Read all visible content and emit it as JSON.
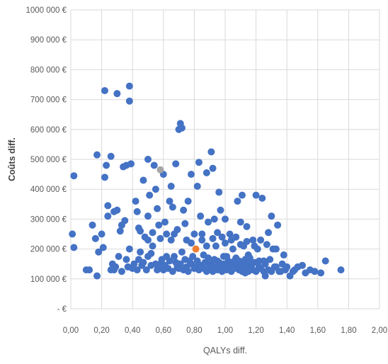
{
  "chart_data": {
    "type": "scatter",
    "xlabel": "QALYs diff.",
    "ylabel": "Coûts diff.",
    "xlim": [
      0,
      2
    ],
    "ylim": [
      0,
      1000000
    ],
    "grid": true,
    "x_ticks": [
      0,
      0.2,
      0.4,
      0.6,
      0.8,
      1.0,
      1.2,
      1.4,
      1.6,
      1.8,
      2.0
    ],
    "x_tick_labels": [
      "0,00",
      "0,20",
      "0,40",
      "0,60",
      "0,80",
      "1,00",
      "1,20",
      "1,40",
      "1,60",
      "1,80",
      "2,00"
    ],
    "y_ticks": [
      0,
      100000,
      200000,
      300000,
      400000,
      500000,
      600000,
      700000,
      800000,
      900000,
      1000000
    ],
    "y_tick_labels": [
      "-   €",
      "100 000 €",
      "200 000 €",
      "300 000 €",
      "400 000 €",
      "500 000 €",
      "600 000 €",
      "700 000 €",
      "800 000 €",
      "900 000 €",
      "1000 000 €"
    ],
    "colors": {
      "series": "#4472c4",
      "highlight_gray": "#a5a5a5",
      "highlight_orange": "#ed7d31"
    },
    "series": [
      {
        "color": "#4472c4",
        "points": [
          [
            0.02,
            445000
          ],
          [
            0.01,
            250000
          ],
          [
            0.02,
            205000
          ],
          [
            0.1,
            130000
          ],
          [
            0.14,
            280000
          ],
          [
            0.16,
            235000
          ],
          [
            0.17,
            515000
          ],
          [
            0.17,
            110000
          ],
          [
            0.22,
            730000
          ],
          [
            0.3,
            720000
          ],
          [
            0.38,
            745000
          ],
          [
            0.38,
            695000
          ],
          [
            0.2,
            250000
          ],
          [
            0.21,
            205000
          ],
          [
            0.22,
            440000
          ],
          [
            0.23,
            480000
          ],
          [
            0.24,
            345000
          ],
          [
            0.24,
            310000
          ],
          [
            0.26,
            510000
          ],
          [
            0.27,
            150000
          ],
          [
            0.28,
            130000
          ],
          [
            0.28,
            325000
          ],
          [
            0.3,
            330000
          ],
          [
            0.32,
            260000
          ],
          [
            0.33,
            280000
          ],
          [
            0.34,
            475000
          ],
          [
            0.35,
            295000
          ],
          [
            0.36,
            480000
          ],
          [
            0.38,
            200000
          ],
          [
            0.39,
            485000
          ],
          [
            0.4,
            135000
          ],
          [
            0.42,
            360000
          ],
          [
            0.43,
            325000
          ],
          [
            0.44,
            270000
          ],
          [
            0.45,
            190000
          ],
          [
            0.46,
            145000
          ],
          [
            0.47,
            430000
          ],
          [
            0.48,
            240000
          ],
          [
            0.5,
            500000
          ],
          [
            0.5,
            310000
          ],
          [
            0.51,
            380000
          ],
          [
            0.52,
            145000
          ],
          [
            0.53,
            210000
          ],
          [
            0.54,
            480000
          ],
          [
            0.55,
            400000
          ],
          [
            0.56,
            335000
          ],
          [
            0.57,
            135000
          ],
          [
            0.58,
            235000
          ],
          [
            0.59,
            165000
          ],
          [
            0.6,
            450000
          ],
          [
            0.61,
            290000
          ],
          [
            0.62,
            175000
          ],
          [
            0.64,
            360000
          ],
          [
            0.65,
            410000
          ],
          [
            0.66,
            340000
          ],
          [
            0.67,
            250000
          ],
          [
            0.68,
            485000
          ],
          [
            0.69,
            140000
          ],
          [
            0.7,
            600000
          ],
          [
            0.71,
            620000
          ],
          [
            0.72,
            605000
          ],
          [
            0.72,
            190000
          ],
          [
            0.73,
            330000
          ],
          [
            0.74,
            285000
          ],
          [
            0.76,
            360000
          ],
          [
            0.77,
            160000
          ],
          [
            0.78,
            450000
          ],
          [
            0.78,
            220000
          ],
          [
            0.8,
            135000
          ],
          [
            0.82,
            410000
          ],
          [
            0.83,
            490000
          ],
          [
            0.84,
            310000
          ],
          [
            0.85,
            250000
          ],
          [
            0.86,
            180000
          ],
          [
            0.88,
            455000
          ],
          [
            0.89,
            290000
          ],
          [
            0.9,
            145000
          ],
          [
            0.91,
            525000
          ],
          [
            0.92,
            470000
          ],
          [
            0.93,
            300000
          ],
          [
            0.94,
            210000
          ],
          [
            0.95,
            160000
          ],
          [
            0.96,
            390000
          ],
          [
            0.97,
            330000
          ],
          [
            0.98,
            240000
          ],
          [
            0.99,
            150000
          ],
          [
            1.0,
            300000
          ],
          [
            1.01,
            175000
          ],
          [
            1.02,
            140000
          ],
          [
            1.03,
            250000
          ],
          [
            1.05,
            200000
          ],
          [
            1.06,
            160000
          ],
          [
            1.08,
            360000
          ],
          [
            1.09,
            130000
          ],
          [
            1.1,
            290000
          ],
          [
            1.11,
            380000
          ],
          [
            1.12,
            210000
          ],
          [
            1.13,
            120000
          ],
          [
            1.14,
            275000
          ],
          [
            1.15,
            180000
          ],
          [
            1.16,
            150000
          ],
          [
            1.18,
            230000
          ],
          [
            1.2,
            380000
          ],
          [
            1.21,
            200000
          ],
          [
            1.22,
            140000
          ],
          [
            1.24,
            370000
          ],
          [
            1.25,
            160000
          ],
          [
            1.26,
            110000
          ],
          [
            1.28,
            255000
          ],
          [
            1.3,
            310000
          ],
          [
            1.31,
            200000
          ],
          [
            1.32,
            140000
          ],
          [
            1.34,
            280000
          ],
          [
            1.36,
            125000
          ],
          [
            1.38,
            180000
          ],
          [
            1.4,
            140000
          ],
          [
            1.42,
            110000
          ],
          [
            1.45,
            130000
          ],
          [
            1.5,
            145000
          ],
          [
            1.52,
            120000
          ],
          [
            1.55,
            130000
          ],
          [
            1.62,
            120000
          ],
          [
            1.65,
            160000
          ],
          [
            1.75,
            130000
          ],
          [
            0.12,
            130000
          ],
          [
            0.18,
            190000
          ],
          [
            0.26,
            130000
          ],
          [
            0.29,
            140000
          ],
          [
            0.31,
            175000
          ],
          [
            0.33,
            125000
          ],
          [
            0.36,
            165000
          ],
          [
            0.37,
            140000
          ],
          [
            0.41,
            150000
          ],
          [
            0.43,
            130000
          ],
          [
            0.44,
            165000
          ],
          [
            0.47,
            155000
          ],
          [
            0.49,
            130000
          ],
          [
            0.5,
            175000
          ],
          [
            0.52,
            185000
          ],
          [
            0.55,
            150000
          ],
          [
            0.56,
            130000
          ],
          [
            0.58,
            150000
          ],
          [
            0.6,
            130000
          ],
          [
            0.61,
            145000
          ],
          [
            0.63,
            135000
          ],
          [
            0.64,
            160000
          ],
          [
            0.66,
            125000
          ],
          [
            0.67,
            175000
          ],
          [
            0.68,
            155000
          ],
          [
            0.7,
            135000
          ],
          [
            0.71,
            150000
          ],
          [
            0.73,
            130000
          ],
          [
            0.74,
            165000
          ],
          [
            0.75,
            140000
          ],
          [
            0.76,
            125000
          ],
          [
            0.78,
            150000
          ],
          [
            0.79,
            175000
          ],
          [
            0.81,
            140000
          ],
          [
            0.82,
            160000
          ],
          [
            0.83,
            130000
          ],
          [
            0.84,
            145000
          ],
          [
            0.86,
            135000
          ],
          [
            0.87,
            155000
          ],
          [
            0.88,
            125000
          ],
          [
            0.89,
            170000
          ],
          [
            0.9,
            135000
          ],
          [
            0.91,
            150000
          ],
          [
            0.92,
            125000
          ],
          [
            0.93,
            165000
          ],
          [
            0.94,
            140000
          ],
          [
            0.95,
            130000
          ],
          [
            0.96,
            155000
          ],
          [
            0.97,
            140000
          ],
          [
            0.98,
            125000
          ],
          [
            0.99,
            175000
          ],
          [
            1.0,
            140000
          ],
          [
            1.01,
            130000
          ],
          [
            1.02,
            160000
          ],
          [
            1.03,
            145000
          ],
          [
            1.04,
            125000
          ],
          [
            1.05,
            155000
          ],
          [
            1.06,
            135000
          ],
          [
            1.07,
            170000
          ],
          [
            1.08,
            150000
          ],
          [
            1.09,
            160000
          ],
          [
            1.1,
            140000
          ],
          [
            1.11,
            125000
          ],
          [
            1.12,
            150000
          ],
          [
            1.13,
            165000
          ],
          [
            1.14,
            135000
          ],
          [
            1.15,
            125000
          ],
          [
            1.16,
            170000
          ],
          [
            1.17,
            140000
          ],
          [
            1.18,
            130000
          ],
          [
            1.19,
            155000
          ],
          [
            1.2,
            125000
          ],
          [
            1.22,
            160000
          ],
          [
            1.23,
            135000
          ],
          [
            1.25,
            125000
          ],
          [
            1.26,
            150000
          ],
          [
            1.28,
            130000
          ],
          [
            1.29,
            165000
          ],
          [
            1.3,
            125000
          ],
          [
            1.33,
            140000
          ],
          [
            1.35,
            125000
          ],
          [
            1.37,
            150000
          ],
          [
            1.39,
            130000
          ],
          [
            1.44,
            125000
          ],
          [
            1.47,
            140000
          ],
          [
            1.58,
            125000
          ],
          [
            0.45,
            260000
          ],
          [
            0.5,
            230000
          ],
          [
            0.53,
            255000
          ],
          [
            0.57,
            280000
          ],
          [
            0.62,
            250000
          ],
          [
            0.65,
            230000
          ],
          [
            0.69,
            265000
          ],
          [
            0.75,
            230000
          ],
          [
            0.8,
            250000
          ],
          [
            0.85,
            230000
          ],
          [
            0.88,
            210000
          ],
          [
            0.92,
            235000
          ],
          [
            0.95,
            255000
          ],
          [
            1.0,
            220000
          ],
          [
            1.04,
            230000
          ],
          [
            1.07,
            240000
          ],
          [
            1.1,
            215000
          ],
          [
            1.14,
            225000
          ],
          [
            1.19,
            210000
          ],
          [
            1.23,
            230000
          ],
          [
            1.27,
            215000
          ],
          [
            1.33,
            200000
          ]
        ]
      }
    ],
    "highlight_points": [
      {
        "color": "#a5a5a5",
        "x": 0.58,
        "y": 465000
      },
      {
        "color": "#ed7d31",
        "x": 0.81,
        "y": 200000
      }
    ]
  }
}
